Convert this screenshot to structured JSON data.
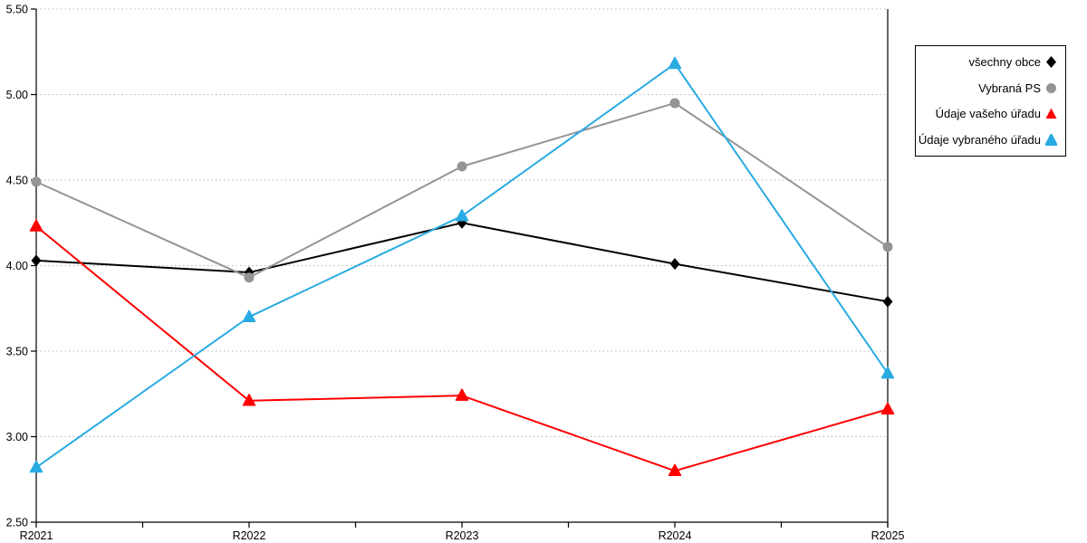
{
  "chart_data": {
    "type": "line",
    "categories": [
      "R2021",
      "R2022",
      "R2023",
      "R2024",
      "R2025"
    ],
    "series": [
      {
        "name": "všechny obce",
        "marker": "diamond",
        "color": "#000000",
        "values": [
          4.03,
          3.96,
          4.25,
          4.01,
          3.79
        ]
      },
      {
        "name": "Vybraná PS",
        "marker": "circle",
        "color": "#949494",
        "values": [
          4.49,
          3.93,
          4.58,
          4.95,
          4.11
        ]
      },
      {
        "name": "Údaje vašeho úřadu",
        "marker": "triangle",
        "color": "#FF0000",
        "values": [
          4.23,
          3.21,
          3.24,
          2.8,
          3.16
        ]
      },
      {
        "name": "Údaje vybraného úřadu",
        "marker": "triangle",
        "color": "#29ABE2",
        "values": [
          2.82,
          3.7,
          4.29,
          5.18,
          3.37
        ]
      }
    ],
    "title": "",
    "xlabel": "",
    "ylabel": "",
    "ylim": [
      2.5,
      5.5
    ],
    "y_tick_step": 0.5,
    "y_tick_labels": [
      "2.50",
      "3.00",
      "3.50",
      "4.00",
      "4.50",
      "5.00",
      "5.50"
    ],
    "grid": "horizontal dotted",
    "legend_position": "outside top-right box"
  }
}
